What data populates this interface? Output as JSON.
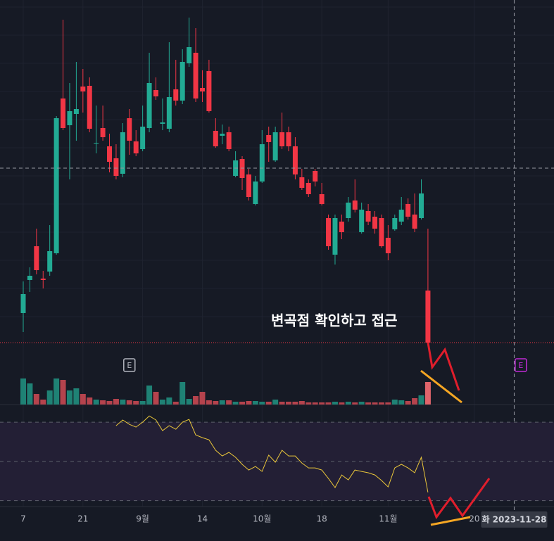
{
  "chart_data": [
    {
      "type": "candlestick",
      "ohlc": [
        [
          55,
          100,
          28,
          82
        ],
        [
          102,
          120,
          85,
          108
        ],
        [
          150,
          175,
          110,
          116
        ],
        [
          104,
          115,
          90,
          102
        ],
        [
          114,
          180,
          108,
          143
        ],
        [
          140,
          335,
          138,
          332
        ],
        [
          360,
          472,
          315,
          318
        ],
        [
          322,
          382,
          245,
          342
        ],
        [
          338,
          412,
          300,
          345
        ],
        [
          377,
          402,
          340,
          370
        ],
        [
          378,
          390,
          312,
          317
        ],
        [
          296,
          350,
          282,
          297
        ],
        [
          318,
          350,
          300,
          305
        ],
        [
          292,
          310,
          255,
          270
        ],
        [
          275,
          295,
          245,
          250
        ],
        [
          253,
          325,
          248,
          312
        ],
        [
          332,
          345,
          280,
          300
        ],
        [
          299,
          315,
          278,
          282
        ],
        [
          288,
          350,
          285,
          320
        ],
        [
          318,
          425,
          312,
          382
        ],
        [
          372,
          390,
          358,
          363
        ],
        [
          324,
          360,
          315,
          326
        ],
        [
          317,
          440,
          312,
          362
        ],
        [
          373,
          415,
          350,
          357
        ],
        [
          357,
          430,
          352,
          412
        ],
        [
          410,
          475,
          405,
          433
        ],
        [
          425,
          460,
          355,
          360
        ],
        [
          375,
          400,
          355,
          370
        ],
        [
          399,
          415,
          340,
          342
        ],
        [
          314,
          332,
          290,
          292
        ],
        [
          307,
          323,
          295,
          310
        ],
        [
          312,
          320,
          285,
          288
        ],
        [
          250,
          285,
          248,
          272
        ],
        [
          274,
          278,
          230,
          247
        ],
        [
          252,
          260,
          215,
          220
        ],
        [
          210,
          250,
          208,
          242
        ],
        [
          242,
          315,
          240,
          295
        ],
        [
          308,
          320,
          270,
          298
        ],
        [
          272,
          320,
          270,
          312
        ],
        [
          312,
          340,
          288,
          292
        ],
        [
          312,
          320,
          285,
          292
        ],
        [
          292,
          305,
          245,
          252
        ],
        [
          248,
          260,
          230,
          233
        ],
        [
          240,
          245,
          220,
          224
        ],
        [
          257,
          260,
          235,
          242
        ],
        [
          224,
          240,
          208,
          210
        ],
        [
          190,
          195,
          145,
          150
        ],
        [
          138,
          195,
          124,
          190
        ],
        [
          185,
          195,
          160,
          170
        ],
        [
          190,
          220,
          185,
          212
        ],
        [
          215,
          245,
          198,
          202
        ],
        [
          170,
          212,
          168,
          202
        ],
        [
          200,
          210,
          180,
          185
        ],
        [
          192,
          200,
          168,
          175
        ],
        [
          190,
          195,
          148,
          150
        ],
        [
          162,
          180,
          130,
          140
        ],
        [
          174,
          195,
          172,
          190
        ],
        [
          185,
          220,
          180,
          202
        ],
        [
          210,
          218,
          188,
          192
        ],
        [
          195,
          225,
          170,
          175
        ],
        [
          190,
          245,
          188,
          225
        ],
        [
          87,
          175,
          10,
          13
        ]
      ],
      "up_color": "#22ab94",
      "down_color": "#f23645",
      "xlim": [
        -3.5,
        80
      ],
      "ylim": [
        0,
        500
      ],
      "xticks": [
        {
          "value": 0,
          "label": "7"
        },
        {
          "value": 9,
          "label": "21"
        },
        {
          "value": 18,
          "label": "9월"
        },
        {
          "value": 27,
          "label": "14"
        },
        {
          "value": 36,
          "label": "10월"
        },
        {
          "value": 45,
          "label": "18"
        },
        {
          "value": 55,
          "label": "11월"
        },
        {
          "value": 68,
          "label": "20"
        }
      ],
      "crosshair": {
        "x": 74,
        "y": 261,
        "label": "화 2023-11-28"
      },
      "events": [
        {
          "x": 16,
          "label": "E",
          "color": "#b2b5be"
        },
        {
          "x": 75,
          "label": "E",
          "color": "#c02bd6"
        }
      ],
      "annotation": "변곡점 확인하고 접근"
    },
    {
      "type": "bar",
      "values": [
        37,
        30,
        15,
        7,
        20,
        37,
        35,
        20,
        23,
        15,
        10,
        7,
        6,
        5,
        8,
        7,
        6,
        5,
        5,
        27,
        18,
        7,
        10,
        4,
        32,
        8,
        12,
        18,
        6,
        5,
        6,
        6,
        4,
        4,
        5,
        5,
        4,
        4,
        7,
        4,
        4,
        4,
        5,
        3,
        3,
        3,
        3,
        4,
        3,
        4,
        3,
        4,
        3,
        3,
        3,
        3,
        7,
        6,
        5,
        9,
        13,
        32
      ],
      "up_color": "#1f8275",
      "down_color": "#b5434d",
      "ylim": [
        0,
        85
      ]
    },
    {
      "type": "line",
      "values": [
        null,
        null,
        null,
        null,
        null,
        null,
        null,
        null,
        null,
        null,
        null,
        null,
        null,
        null,
        68.2,
        71.1,
        68.9,
        67.5,
        70.0,
        73.2,
        71.1,
        65.7,
        68.2,
        66.4,
        70.0,
        71.4,
        63.5,
        62.1,
        61.0,
        55.7,
        52.8,
        54.6,
        52.1,
        48.5,
        45.6,
        47.4,
        44.9,
        53.2,
        49.6,
        55.7,
        52.8,
        52.8,
        49.2,
        46.7,
        46.7,
        45.6,
        41.3,
        36.7,
        43.1,
        40.6,
        45.6,
        44.9,
        44.2,
        43.1,
        40.3,
        37.0,
        46.7,
        48.5,
        46.7,
        44.2,
        52.1,
        34.2
      ],
      "color": "#e8c53a",
      "ylim": [
        27,
        79
      ],
      "levels": [
        70,
        50,
        30
      ],
      "band_color": "#231f35"
    }
  ]
}
